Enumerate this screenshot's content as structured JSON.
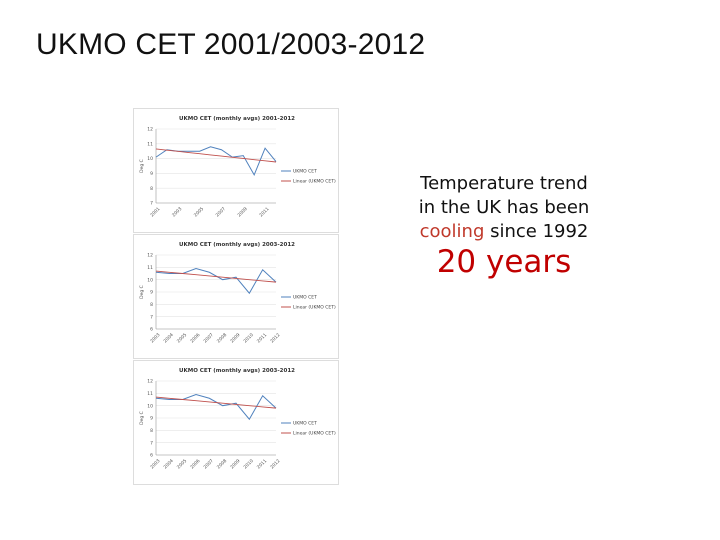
{
  "slide": {
    "title": "UKMO CET 2001/2003-2012",
    "caption_line1": "Temperature trend",
    "caption_line2": "in the UK has been",
    "caption_cooling": "cooling",
    "caption_since": " since 1992",
    "big_text": "20 years"
  },
  "colors": {
    "series": "#4f81bd",
    "trend": "#c0504d",
    "big_text": "#c00000"
  },
  "chart_data": [
    {
      "type": "line",
      "title": "UKMO CET (monthly avgs) 2001-2012",
      "ylabel": "Deg C",
      "ylim": [
        7,
        12
      ],
      "yticks": [
        "12",
        "11",
        "10",
        "9",
        "8",
        "7"
      ],
      "x": [
        2001,
        2002,
        2003,
        2004,
        2005,
        2006,
        2007,
        2008,
        2009,
        2010,
        2011,
        2012
      ],
      "xtick_labels": [
        "2001",
        "2003",
        "2005",
        "2007",
        "2009",
        "2011"
      ],
      "series": [
        {
          "name": "UKMO CET",
          "values": [
            10.1,
            10.6,
            10.5,
            10.5,
            10.5,
            10.8,
            10.6,
            10.1,
            10.2,
            8.9,
            10.7,
            9.8
          ]
        },
        {
          "name": "Linear (UKMO CET)",
          "values": [
            10.65,
            10.57,
            10.49,
            10.41,
            10.33,
            10.25,
            10.17,
            10.09,
            10.01,
            9.93,
            9.85,
            9.77
          ]
        }
      ],
      "legend": "right"
    },
    {
      "type": "line",
      "title": "UKMO CET (monthly avgs) 2003-2012",
      "ylabel": "Deg C",
      "ylim": [
        6,
        12
      ],
      "yticks": [
        "12",
        "11",
        "10",
        "9",
        "8",
        "7",
        "6"
      ],
      "x": [
        2003,
        2004,
        2005,
        2006,
        2007,
        2008,
        2009,
        2010,
        2011,
        2012
      ],
      "xtick_labels": [
        "2003",
        "2004",
        "2005",
        "2006",
        "2007",
        "2008",
        "2009",
        "2010",
        "2011",
        "2012"
      ],
      "series": [
        {
          "name": "UKMO CET",
          "values": [
            10.6,
            10.5,
            10.5,
            10.9,
            10.6,
            10.0,
            10.2,
            8.9,
            10.8,
            9.8
          ]
        },
        {
          "name": "Linear (UKMO CET)",
          "values": [
            10.7,
            10.6,
            10.5,
            10.4,
            10.3,
            10.2,
            10.1,
            10.0,
            9.9,
            9.8
          ]
        }
      ],
      "legend": "right"
    },
    {
      "type": "line",
      "title": "UKMO CET (monthly avgs) 2003-2012",
      "ylabel": "Deg C",
      "ylim": [
        6,
        12
      ],
      "yticks": [
        "12",
        "11",
        "10",
        "9",
        "8",
        "7",
        "6"
      ],
      "x": [
        2003,
        2004,
        2005,
        2006,
        2007,
        2008,
        2009,
        2010,
        2011,
        2012
      ],
      "xtick_labels": [
        "2003",
        "2004",
        "2005",
        "2006",
        "2007",
        "2008",
        "2009",
        "2010",
        "2011",
        "2012"
      ],
      "series": [
        {
          "name": "UKMO CET",
          "values": [
            10.6,
            10.5,
            10.5,
            10.9,
            10.6,
            10.0,
            10.2,
            8.9,
            10.8,
            9.8
          ]
        },
        {
          "name": "Linear (UKMO CET)",
          "values": [
            10.7,
            10.6,
            10.5,
            10.4,
            10.3,
            10.2,
            10.1,
            10.0,
            9.9,
            9.8
          ]
        }
      ],
      "legend": "right"
    }
  ]
}
